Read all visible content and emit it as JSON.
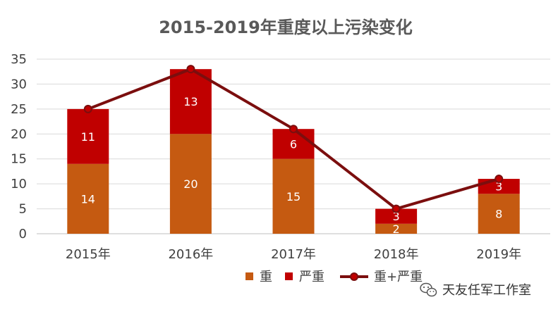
{
  "chart_data": {
    "type": "bar",
    "title": "2015-2019年重度以上污染变化",
    "categories": [
      "2015年",
      "2016年",
      "2017年",
      "2018年",
      "2019年"
    ],
    "series": [
      {
        "name": "重",
        "type": "bar",
        "stacked": true,
        "color": "#C55A11",
        "values": [
          14,
          20,
          15,
          2,
          8
        ]
      },
      {
        "name": "严重",
        "type": "bar",
        "stacked": true,
        "color": "#C00000",
        "values": [
          11,
          13,
          6,
          3,
          3
        ]
      },
      {
        "name": "重+严重",
        "type": "line",
        "color": "#7B0E0E",
        "values": [
          25,
          33,
          21,
          5,
          11
        ]
      }
    ],
    "ylim": [
      0,
      35
    ],
    "yticks": [
      0,
      5,
      10,
      15,
      20,
      25,
      30,
      35
    ],
    "grid": true,
    "legend": "bottom"
  },
  "watermark": {
    "text": "天友任军工作室",
    "icon": "wechat-icon"
  }
}
